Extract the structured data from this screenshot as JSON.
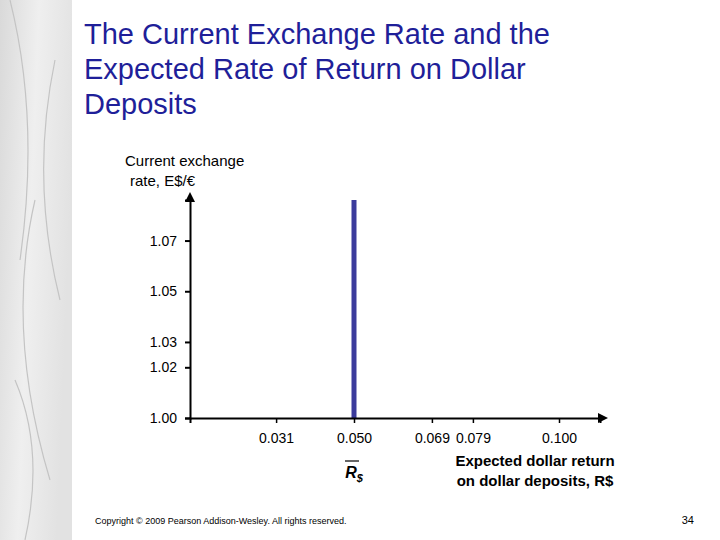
{
  "chart_data": {
    "type": "line",
    "title": [
      "The Current Exchange Rate and the",
      "Expected Rate of Return on Dollar",
      "Deposits"
    ],
    "ylabel": [
      "Current exchange",
      "rate, E$/€"
    ],
    "xlabel": [
      "Expected dollar return",
      "on dollar deposits, R$"
    ],
    "xlim": [
      0.01,
      0.11
    ],
    "xticks": [
      0.031,
      {
        "value": 0.05,
        "label": "0.050"
      },
      0.069,
      0.079,
      {
        "value": 0.1,
        "label": "0.100"
      }
    ],
    "ylim": [
      1.0,
      1.086
    ],
    "yticks": [
      {
        "value": 1.0,
        "label": "1.00"
      },
      1.02,
      1.03,
      1.05,
      1.07
    ],
    "series": [
      {
        "x": [
          0.05,
          0.05
        ],
        "values": [
          1.0,
          1.086
        ],
        "color": "#3b3b9c"
      }
    ],
    "annotations": [
      {
        "text": "R$",
        "x": 0.05
      }
    ],
    "grid": false
  },
  "footer": "Copyright © 2009 Pearson Addison-Wesley. All rights reserved.",
  "page_number": 34
}
